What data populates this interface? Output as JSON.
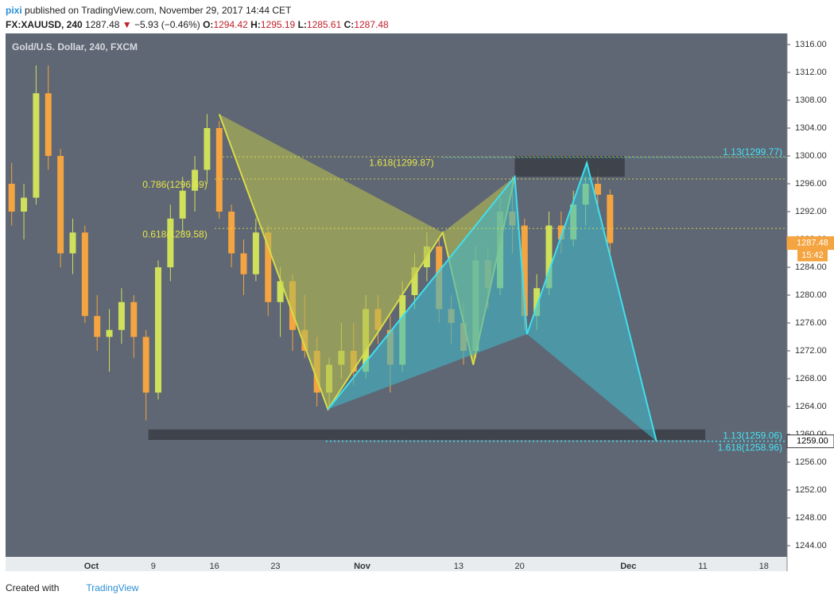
{
  "header": {
    "user": "pixi",
    "published": "published on TradingView.com, November 29, 2017 14:44 CET",
    "symbol": "FX:XAUUSD, 240",
    "last": "1287.48",
    "arrow": "▼",
    "change": "−5.93 (−0.46%)",
    "o_label": "O:",
    "o": "1294.42",
    "h_label": "H:",
    "h": "1295.19",
    "l_label": "L:",
    "l": "1285.61",
    "c_label": "C:",
    "c": "1287.48"
  },
  "footer": {
    "text": "Created with",
    "brand": "TradingView"
  },
  "chart_data": {
    "type": "candlestick",
    "title": "Gold/U.S. Dollar, 240, FXCM",
    "up_color": "#cfe05a",
    "down_color": "#f4a440",
    "background": "#5f6674",
    "xlim": [
      -0.5,
      63.5
    ],
    "ylim": [
      1242.4,
      1317.6
    ],
    "xticks": [
      {
        "value": 6.53,
        "label": "Oct"
      },
      {
        "value": 11.6,
        "label": "9"
      },
      {
        "value": 16.6,
        "label": "16"
      },
      {
        "value": 21.6,
        "label": "23"
      },
      {
        "value": 28.7,
        "label": "Nov"
      },
      {
        "value": 36.6,
        "label": "13"
      },
      {
        "value": 41.6,
        "label": "20"
      },
      {
        "value": 50.5,
        "label": "Dec"
      },
      {
        "value": 56.6,
        "label": "11"
      },
      {
        "value": 61.6,
        "label": "18"
      }
    ],
    "yticks": [
      {
        "value": 1244,
        "label": "1244.00"
      },
      {
        "value": 1248,
        "label": "1248.00"
      },
      {
        "value": 1252,
        "label": "1252.00"
      },
      {
        "value": 1256,
        "label": "1256.00"
      },
      {
        "value": 1260,
        "label": "1260.00"
      },
      {
        "value": 1264,
        "label": "1264.00"
      },
      {
        "value": 1268,
        "label": "1268.00"
      },
      {
        "value": 1272,
        "label": "1272.00"
      },
      {
        "value": 1276,
        "label": "1276.00"
      },
      {
        "value": 1280,
        "label": "1280.00"
      },
      {
        "value": 1284,
        "label": "1284.00"
      },
      {
        "value": 1288,
        "label": "1288.00"
      },
      {
        "value": 1292,
        "label": "1292.00"
      },
      {
        "value": 1296,
        "label": "1296.00"
      },
      {
        "value": 1300,
        "label": "1300.00"
      },
      {
        "value": 1304,
        "label": "1304.00"
      },
      {
        "value": 1308,
        "label": "1308.00"
      },
      {
        "value": 1312,
        "label": "1312.00"
      },
      {
        "value": 1316,
        "label": "1316.00"
      }
    ],
    "x": [
      0,
      1,
      2,
      3,
      4,
      5,
      6,
      7,
      8,
      9,
      10,
      11,
      12,
      13,
      14,
      15,
      16,
      17,
      18,
      19,
      20,
      21,
      22,
      23,
      24,
      25,
      26,
      27,
      28,
      29,
      30,
      31,
      32,
      33,
      34,
      35,
      36,
      37,
      38,
      39,
      40,
      41,
      42,
      43,
      44,
      45,
      46,
      47,
      48,
      49
    ],
    "open": [
      1296,
      1292,
      1294,
      1309,
      1300,
      1286,
      1289,
      1277,
      1274,
      1275,
      1279,
      1274,
      1266,
      1284,
      1291,
      1295,
      1298,
      1304,
      1292,
      1286,
      1283,
      1289,
      1279,
      1282,
      1275,
      1272,
      1266,
      1270,
      1272,
      1269,
      1278,
      1275,
      1270,
      1280,
      1284,
      1287,
      1278,
      1276,
      1272,
      1285,
      1281,
      1292,
      1290,
      1277,
      1281,
      1290,
      1288,
      1293,
      1296,
      1294.42
    ],
    "high": [
      1299,
      1296,
      1313,
      1313,
      1301,
      1291,
      1290,
      1280,
      1278,
      1281,
      1280,
      1275,
      1285,
      1293,
      1297,
      1300,
      1306,
      1305,
      1293,
      1288,
      1291,
      1290,
      1284,
      1283,
      1280,
      1274,
      1271,
      1276,
      1276,
      1280,
      1280,
      1277,
      1282,
      1286,
      1289,
      1288,
      1280,
      1279,
      1287,
      1287,
      1294,
      1297,
      1291,
      1283,
      1292,
      1292,
      1295,
      1299,
      1298,
      1295.19
    ],
    "low": [
      1290,
      1288,
      1293,
      1298,
      1284,
      1283,
      1276,
      1272,
      1269,
      1273,
      1271,
      1262,
      1265,
      1282,
      1289,
      1292,
      1296,
      1291,
      1284,
      1280,
      1282,
      1277,
      1274,
      1272,
      1271,
      1264,
      1263.6,
      1268,
      1267,
      1268,
      1273,
      1266,
      1269,
      1278,
      1282,
      1276,
      1273,
      1270,
      1271,
      1278,
      1280,
      1286,
      1275,
      1275,
      1280,
      1286,
      1287,
      1290,
      1292,
      1285.61
    ],
    "close": [
      1292,
      1294,
      1309,
      1300,
      1286,
      1289,
      1277,
      1274,
      1275,
      1279,
      1274,
      1266,
      1284,
      1291,
      1295,
      1298,
      1304,
      1292,
      1286,
      1283,
      1289,
      1279,
      1282,
      1275,
      1272,
      1266,
      1270,
      1272,
      1269,
      1278,
      1275,
      1270,
      1280,
      1284,
      1287,
      1278,
      1276,
      1272,
      1285,
      1281,
      1292,
      1290,
      1277,
      1281,
      1290,
      1288,
      1293,
      1296,
      1294.42,
      1287.48
    ],
    "patterns": [
      {
        "color": "#d8dc48",
        "fill": "#b5bc50",
        "x": [
          17,
          25.9,
          35.3,
          37.8,
          41.2
        ],
        "y": [
          1306,
          1263.6,
          1289,
          1270,
          1297
        ]
      },
      {
        "color": "#3ee0ee",
        "fill": "#3fb6c6",
        "x": [
          25.9,
          41.2,
          42.2,
          47.1,
          52.8
        ],
        "y": [
          1263.6,
          1297,
          1274.4,
          1299,
          1259
        ]
      }
    ],
    "zones": [
      {
        "xlim": [
          41.2,
          50.2
        ],
        "ylim": [
          1297,
          1300
        ]
      },
      {
        "xlim": [
          11.2,
          56.8
        ],
        "ylim": [
          1259.2,
          1260.7
        ]
      }
    ],
    "levels": [
      {
        "value": 1299.87,
        "label": "1.618(1299.87)",
        "color": "#e8e84a"
      },
      {
        "value": 1296.69,
        "label": "0.786(1296.69)",
        "color": "#e8e84a"
      },
      {
        "value": 1289.58,
        "label": "0.618(1289.58)",
        "color": "#e8e84a"
      },
      {
        "value": 1299.77,
        "label": "1.13(1299.77)",
        "color": "#44e4f4"
      },
      {
        "value": 1259.06,
        "label": "1.13(1259.06)",
        "color": "#44e4f4"
      },
      {
        "value": 1258.96,
        "label": "1.618(1258.96)",
        "color": "#44e4f4"
      }
    ],
    "price_markers": [
      {
        "value": 1287.48,
        "label": "1287.48",
        "note": "15:42",
        "color": "#f4a440"
      },
      {
        "value": 1259,
        "label": "1259.00",
        "color": "#ffffff"
      }
    ]
  }
}
